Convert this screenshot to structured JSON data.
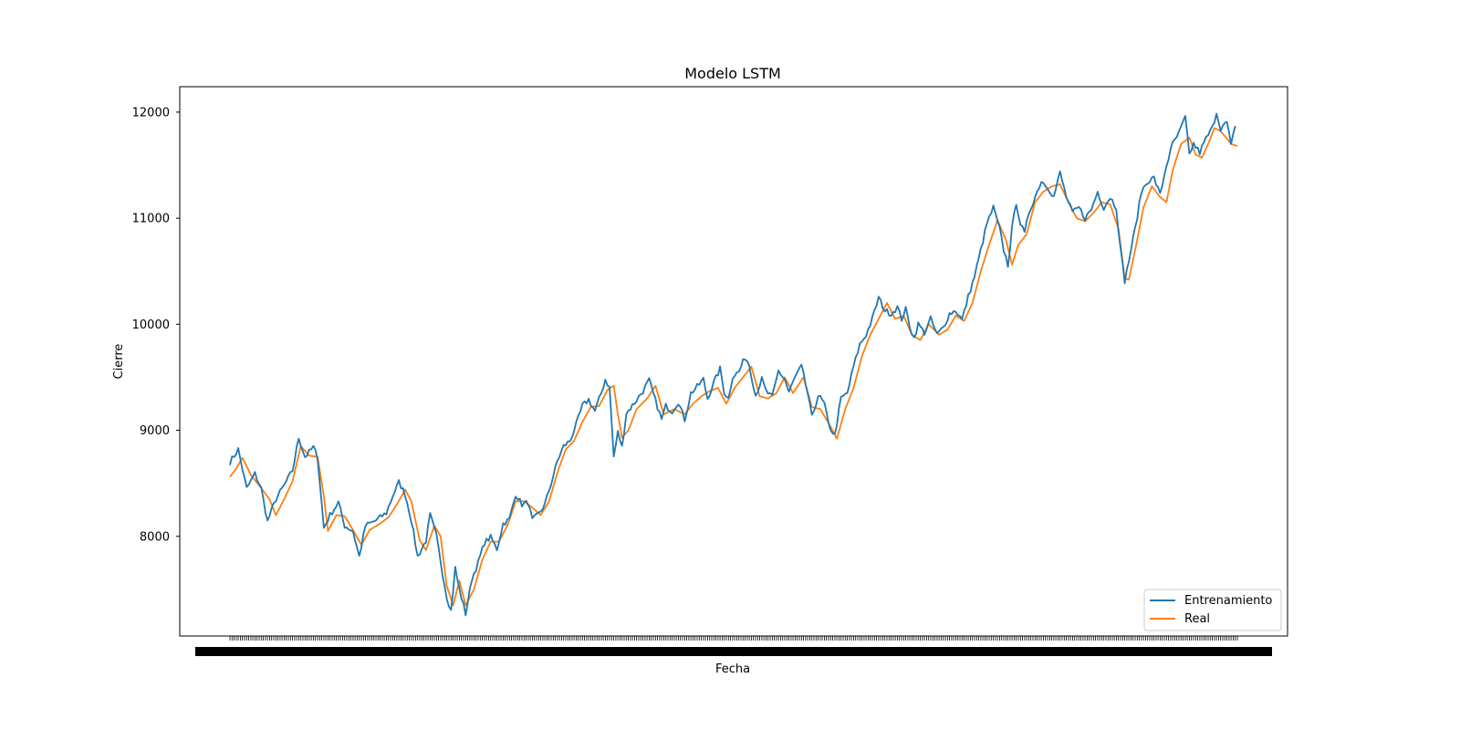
{
  "chart_data": {
    "type": "line",
    "title": "Modelo LSTM",
    "xlabel": "Fecha",
    "ylabel": "Cierre",
    "ylim": [
      7060,
      12240
    ],
    "yticks": [
      8000,
      9000,
      10000,
      11000,
      12000
    ],
    "grid": false,
    "legend_position": "lower-right",
    "x_tick_labels_note": "dense overlapping date labels, unreadable",
    "series": [
      {
        "name": "Entrenamiento",
        "color": "#1f77b4",
        "anchors": [
          [
            0,
            8700
          ],
          [
            4,
            8820
          ],
          [
            8,
            8450
          ],
          [
            12,
            8590
          ],
          [
            15,
            8450
          ],
          [
            18,
            8140
          ],
          [
            22,
            8350
          ],
          [
            26,
            8480
          ],
          [
            30,
            8620
          ],
          [
            33,
            8930
          ],
          [
            36,
            8750
          ],
          [
            40,
            8840
          ],
          [
            42,
            8750
          ],
          [
            45,
            8080
          ],
          [
            48,
            8200
          ],
          [
            52,
            8320
          ],
          [
            55,
            8100
          ],
          [
            59,
            8050
          ],
          [
            62,
            7810
          ],
          [
            65,
            8100
          ],
          [
            70,
            8150
          ],
          [
            75,
            8220
          ],
          [
            78,
            8380
          ],
          [
            81,
            8510
          ],
          [
            84,
            8400
          ],
          [
            87,
            8150
          ],
          [
            90,
            7810
          ],
          [
            94,
            7960
          ],
          [
            96,
            8200
          ],
          [
            99,
            8000
          ],
          [
            102,
            7650
          ],
          [
            104,
            7430
          ],
          [
            106,
            7300
          ],
          [
            108,
            7700
          ],
          [
            110,
            7500
          ],
          [
            113,
            7270
          ],
          [
            116,
            7600
          ],
          [
            119,
            7750
          ],
          [
            122,
            7940
          ],
          [
            125,
            7990
          ],
          [
            128,
            7880
          ],
          [
            131,
            8120
          ],
          [
            134,
            8160
          ],
          [
            137,
            8400
          ],
          [
            140,
            8300
          ],
          [
            143,
            8320
          ],
          [
            145,
            8150
          ],
          [
            148,
            8210
          ],
          [
            151,
            8300
          ],
          [
            154,
            8500
          ],
          [
            157,
            8710
          ],
          [
            160,
            8850
          ],
          [
            163,
            8900
          ],
          [
            166,
            9050
          ],
          [
            169,
            9230
          ],
          [
            172,
            9290
          ],
          [
            175,
            9180
          ],
          [
            178,
            9350
          ],
          [
            180,
            9480
          ],
          [
            182,
            9400
          ],
          [
            184,
            8750
          ],
          [
            186,
            8980
          ],
          [
            188,
            8840
          ],
          [
            190,
            9160
          ],
          [
            194,
            9260
          ],
          [
            198,
            9370
          ],
          [
            201,
            9470
          ],
          [
            204,
            9280
          ],
          [
            207,
            9100
          ],
          [
            209,
            9230
          ],
          [
            212,
            9180
          ],
          [
            215,
            9270
          ],
          [
            218,
            9100
          ],
          [
            221,
            9350
          ],
          [
            224,
            9410
          ],
          [
            227,
            9480
          ],
          [
            229,
            9300
          ],
          [
            232,
            9450
          ],
          [
            235,
            9580
          ],
          [
            237,
            9360
          ],
          [
            239,
            9300
          ],
          [
            241,
            9510
          ],
          [
            244,
            9550
          ],
          [
            247,
            9690
          ],
          [
            249,
            9620
          ],
          [
            252,
            9330
          ],
          [
            255,
            9480
          ],
          [
            257,
            9370
          ],
          [
            260,
            9310
          ],
          [
            263,
            9560
          ],
          [
            266,
            9480
          ],
          [
            268,
            9360
          ],
          [
            271,
            9500
          ],
          [
            274,
            9600
          ],
          [
            277,
            9350
          ],
          [
            279,
            9120
          ],
          [
            282,
            9330
          ],
          [
            285,
            9250
          ],
          [
            287,
            9050
          ],
          [
            290,
            8950
          ],
          [
            293,
            9300
          ],
          [
            296,
            9350
          ],
          [
            299,
            9600
          ],
          [
            302,
            9810
          ],
          [
            305,
            9900
          ],
          [
            308,
            10050
          ],
          [
            311,
            10250
          ],
          [
            314,
            10130
          ],
          [
            317,
            10100
          ],
          [
            320,
            10160
          ],
          [
            322,
            10050
          ],
          [
            324,
            10140
          ],
          [
            326,
            9980
          ],
          [
            328,
            9870
          ],
          [
            330,
            10000
          ],
          [
            333,
            9920
          ],
          [
            336,
            10050
          ],
          [
            339,
            9900
          ],
          [
            342,
            9970
          ],
          [
            345,
            10100
          ],
          [
            348,
            10130
          ],
          [
            351,
            10040
          ],
          [
            354,
            10260
          ],
          [
            357,
            10450
          ],
          [
            360,
            10700
          ],
          [
            363,
            10950
          ],
          [
            366,
            11100
          ],
          [
            369,
            10900
          ],
          [
            371,
            10700
          ],
          [
            373,
            10560
          ],
          [
            375,
            10900
          ],
          [
            377,
            11150
          ],
          [
            379,
            10950
          ],
          [
            381,
            10850
          ],
          [
            383,
            11050
          ],
          [
            386,
            11200
          ],
          [
            389,
            11350
          ],
          [
            392,
            11300
          ],
          [
            395,
            11200
          ],
          [
            398,
            11430
          ],
          [
            401,
            11200
          ],
          [
            404,
            11050
          ],
          [
            407,
            11100
          ],
          [
            410,
            11000
          ],
          [
            413,
            11080
          ],
          [
            416,
            11250
          ],
          [
            419,
            11100
          ],
          [
            422,
            11200
          ],
          [
            425,
            11100
          ],
          [
            427,
            10700
          ],
          [
            429,
            10410
          ],
          [
            431,
            10600
          ],
          [
            434,
            10900
          ],
          [
            437,
            11250
          ],
          [
            440,
            11350
          ],
          [
            443,
            11380
          ],
          [
            446,
            11220
          ],
          [
            449,
            11500
          ],
          [
            452,
            11700
          ],
          [
            455,
            11800
          ],
          [
            458,
            11950
          ],
          [
            460,
            11600
          ],
          [
            462,
            11700
          ],
          [
            465,
            11620
          ],
          [
            468,
            11750
          ],
          [
            471,
            11850
          ],
          [
            473,
            12000
          ],
          [
            475,
            11850
          ],
          [
            478,
            11900
          ],
          [
            480,
            11680
          ],
          [
            482,
            11870
          ]
        ]
      },
      {
        "name": "Real",
        "color": "#ff7f0e",
        "anchors": [
          [
            0,
            8560
          ],
          [
            3,
            8640
          ],
          [
            6,
            8740
          ],
          [
            10,
            8580
          ],
          [
            14,
            8480
          ],
          [
            19,
            8350
          ],
          [
            22,
            8200
          ],
          [
            26,
            8350
          ],
          [
            30,
            8520
          ],
          [
            34,
            8850
          ],
          [
            38,
            8760
          ],
          [
            42,
            8750
          ],
          [
            45,
            8380
          ],
          [
            47,
            8050
          ],
          [
            51,
            8200
          ],
          [
            55,
            8190
          ],
          [
            59,
            8060
          ],
          [
            63,
            7920
          ],
          [
            67,
            8060
          ],
          [
            72,
            8120
          ],
          [
            76,
            8180
          ],
          [
            80,
            8300
          ],
          [
            84,
            8440
          ],
          [
            87,
            8330
          ],
          [
            91,
            7960
          ],
          [
            94,
            7870
          ],
          [
            98,
            8100
          ],
          [
            101,
            8000
          ],
          [
            104,
            7530
          ],
          [
            107,
            7350
          ],
          [
            110,
            7580
          ],
          [
            113,
            7350
          ],
          [
            117,
            7500
          ],
          [
            121,
            7780
          ],
          [
            125,
            7950
          ],
          [
            129,
            7950
          ],
          [
            133,
            8100
          ],
          [
            137,
            8330
          ],
          [
            141,
            8330
          ],
          [
            145,
            8270
          ],
          [
            149,
            8200
          ],
          [
            153,
            8330
          ],
          [
            157,
            8600
          ],
          [
            161,
            8820
          ],
          [
            165,
            8900
          ],
          [
            169,
            9080
          ],
          [
            173,
            9220
          ],
          [
            177,
            9230
          ],
          [
            181,
            9380
          ],
          [
            184,
            9420
          ],
          [
            186,
            9150
          ],
          [
            188,
            8930
          ],
          [
            191,
            9000
          ],
          [
            195,
            9200
          ],
          [
            200,
            9300
          ],
          [
            204,
            9420
          ],
          [
            208,
            9150
          ],
          [
            213,
            9200
          ],
          [
            218,
            9150
          ],
          [
            222,
            9250
          ],
          [
            226,
            9320
          ],
          [
            230,
            9370
          ],
          [
            234,
            9400
          ],
          [
            238,
            9250
          ],
          [
            242,
            9400
          ],
          [
            246,
            9500
          ],
          [
            250,
            9600
          ],
          [
            254,
            9320
          ],
          [
            258,
            9300
          ],
          [
            262,
            9350
          ],
          [
            266,
            9500
          ],
          [
            270,
            9350
          ],
          [
            275,
            9500
          ],
          [
            279,
            9220
          ],
          [
            283,
            9200
          ],
          [
            287,
            9070
          ],
          [
            291,
            8920
          ],
          [
            295,
            9200
          ],
          [
            299,
            9400
          ],
          [
            303,
            9700
          ],
          [
            307,
            9900
          ],
          [
            311,
            10050
          ],
          [
            315,
            10200
          ],
          [
            319,
            10050
          ],
          [
            323,
            10080
          ],
          [
            327,
            9900
          ],
          [
            331,
            9850
          ],
          [
            335,
            10000
          ],
          [
            340,
            9900
          ],
          [
            344,
            9950
          ],
          [
            348,
            10080
          ],
          [
            352,
            10030
          ],
          [
            356,
            10200
          ],
          [
            360,
            10500
          ],
          [
            364,
            10750
          ],
          [
            368,
            10980
          ],
          [
            372,
            10800
          ],
          [
            375,
            10560
          ],
          [
            378,
            10750
          ],
          [
            382,
            10850
          ],
          [
            386,
            11150
          ],
          [
            390,
            11250
          ],
          [
            394,
            11300
          ],
          [
            398,
            11320
          ],
          [
            402,
            11150
          ],
          [
            406,
            11000
          ],
          [
            410,
            10970
          ],
          [
            414,
            11050
          ],
          [
            418,
            11150
          ],
          [
            422,
            11130
          ],
          [
            426,
            10900
          ],
          [
            429,
            10430
          ],
          [
            431,
            10420
          ],
          [
            434,
            10700
          ],
          [
            438,
            11100
          ],
          [
            442,
            11300
          ],
          [
            446,
            11200
          ],
          [
            449,
            11150
          ],
          [
            452,
            11450
          ],
          [
            456,
            11700
          ],
          [
            460,
            11760
          ],
          [
            463,
            11600
          ],
          [
            466,
            11570
          ],
          [
            469,
            11700
          ],
          [
            472,
            11850
          ],
          [
            475,
            11820
          ],
          [
            478,
            11750
          ],
          [
            480,
            11700
          ],
          [
            483,
            11680
          ]
        ]
      }
    ]
  }
}
